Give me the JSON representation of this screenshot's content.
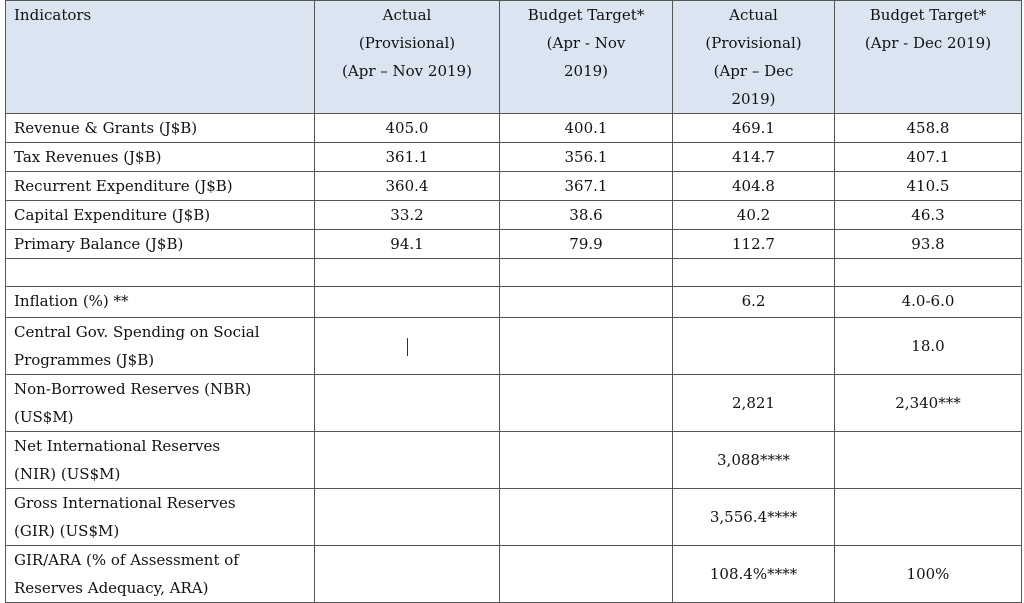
{
  "headers": [
    "Indicators",
    "Actual\n(Provisional)\n(Apr – Nov 2019)",
    "Budget Target*\n(Apr - Nov\n2019)",
    "Actual\n(Provisional)\n(Apr – Dec\n2019)",
    "Budget Target*\n(Apr - Dec 2019)"
  ],
  "rows": [
    {
      "label": "Revenue & Grants (J$B)",
      "c1": "405.0",
      "c2": "400.1",
      "c3": "469.1",
      "c4": "458.8"
    },
    {
      "label": "Tax Revenues (J$B)",
      "c1": "361.1",
      "c2": "356.1",
      "c3": "414.7",
      "c4": "407.1"
    },
    {
      "label": "Recurrent Expenditure (J$B)",
      "c1": "360.4",
      "c2": "367.1",
      "c3": "404.8",
      "c4": "410.5"
    },
    {
      "label": "Capital Expenditure (J$B)",
      "c1": "33.2",
      "c2": "38.6",
      "c3": "40.2",
      "c4": "46.3"
    },
    {
      "label": "Primary Balance (J$B)",
      "c1": "94.1",
      "c2": "79.9",
      "c3": "112.7",
      "c4": "93.8"
    },
    {
      "label": "",
      "c1": "",
      "c2": "",
      "c3": "",
      "c4": ""
    },
    {
      "label": "Inflation (%) **",
      "c1": "",
      "c2": "",
      "c3": "6.2",
      "c4": "4.0-6.0"
    },
    {
      "label": "Central Gov. Spending on Social\nProgrammes (J$B)",
      "c1": "",
      "c2": "",
      "c3": "",
      "c4": "18.0"
    },
    {
      "label": "Non-Borrowed Reserves (NBR)\n(US$M)",
      "c1": "",
      "c2": "",
      "c3": "2,821",
      "c4": "2,340***"
    },
    {
      "label": "Net International Reserves\n(NIR) (US$M)",
      "c1": "",
      "c2": "",
      "c3": "3,088****",
      "c4": ""
    },
    {
      "label": "Gross International Reserves\n(GIR) (US$M)",
      "c1": "",
      "c2": "",
      "c3": "3,556.4****",
      "c4": ""
    },
    {
      "label": "GIR/ARA (% of Assessment of\nReserves Adequacy, ARA)",
      "c1": "",
      "c2": "",
      "c3": "108.4%****",
      "c4": "100%"
    }
  ]
}
